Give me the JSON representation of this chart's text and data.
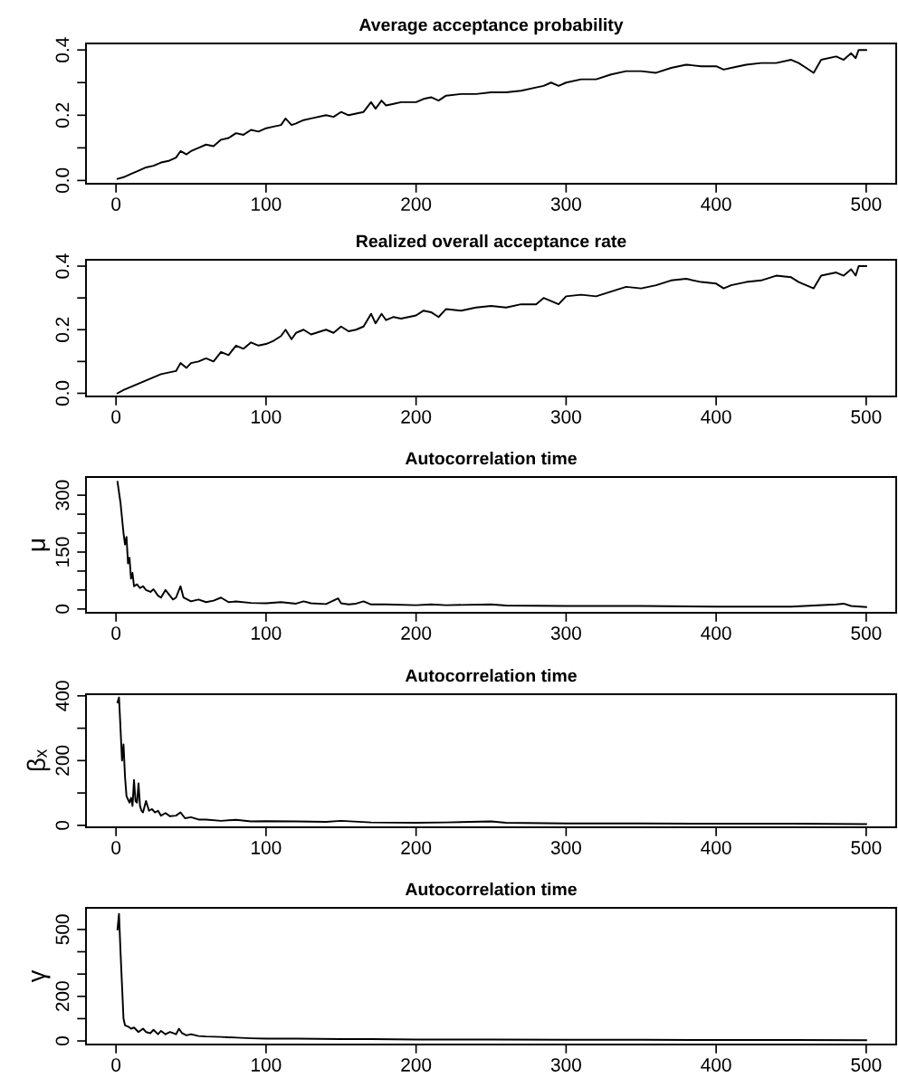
{
  "chart_data": [
    {
      "type": "line",
      "title": "Average acceptance probability",
      "xlim": [
        -20,
        520
      ],
      "xticks": [
        0,
        100,
        200,
        300,
        400,
        500
      ],
      "ylim": [
        -0.01,
        0.42
      ],
      "yticks": [
        {
          "value": 0,
          "label": "0.0"
        },
        {
          "value": 0.1,
          "label": null
        },
        0.2,
        {
          "value": 0.3,
          "label": null
        },
        0.4
      ],
      "grid": false,
      "legend": false,
      "series": [
        {
          "color": "#000000",
          "x": [
            1,
            5,
            10,
            15,
            20,
            25,
            30,
            35,
            40,
            43,
            47,
            50,
            55,
            60,
            65,
            70,
            75,
            80,
            85,
            90,
            95,
            100,
            105,
            110,
            113,
            117,
            120,
            125,
            130,
            140,
            145,
            150,
            155,
            160,
            165,
            170,
            173,
            177,
            180,
            185,
            190,
            200,
            205,
            210,
            215,
            220,
            230,
            240,
            250,
            260,
            270,
            280,
            285,
            290,
            295,
            300,
            310,
            320,
            330,
            340,
            350,
            360,
            370,
            380,
            390,
            400,
            405,
            410,
            420,
            430,
            440,
            450,
            455,
            460,
            465,
            470,
            480,
            485,
            490,
            493,
            495,
            500
          ],
          "values": [
            0.005,
            0.01,
            0.02,
            0.03,
            0.04,
            0.045,
            0.055,
            0.06,
            0.07,
            0.09,
            0.08,
            0.09,
            0.1,
            0.11,
            0.105,
            0.125,
            0.13,
            0.145,
            0.14,
            0.155,
            0.15,
            0.16,
            0.165,
            0.17,
            0.19,
            0.17,
            0.175,
            0.185,
            0.19,
            0.2,
            0.195,
            0.21,
            0.2,
            0.205,
            0.21,
            0.24,
            0.22,
            0.245,
            0.23,
            0.235,
            0.24,
            0.24,
            0.25,
            0.255,
            0.245,
            0.26,
            0.265,
            0.265,
            0.27,
            0.27,
            0.275,
            0.285,
            0.29,
            0.3,
            0.29,
            0.3,
            0.31,
            0.31,
            0.325,
            0.335,
            0.335,
            0.33,
            0.345,
            0.355,
            0.35,
            0.35,
            0.34,
            0.345,
            0.355,
            0.36,
            0.36,
            0.37,
            0.36,
            0.345,
            0.33,
            0.37,
            0.38,
            0.37,
            0.39,
            0.375,
            0.4,
            0.4
          ]
        }
      ]
    },
    {
      "type": "line",
      "title": "Realized overall acceptance rate",
      "xlim": [
        -20,
        520
      ],
      "xticks": [
        0,
        100,
        200,
        300,
        400,
        500
      ],
      "ylim": [
        -0.01,
        0.42
      ],
      "yticks": [
        {
          "value": 0,
          "label": "0.0"
        },
        {
          "value": 0.1,
          "label": null
        },
        0.2,
        {
          "value": 0.3,
          "label": null
        },
        0.4
      ],
      "grid": false,
      "legend": false,
      "series": [
        {
          "color": "#000000",
          "x": [
            1,
            5,
            10,
            15,
            20,
            25,
            30,
            35,
            40,
            43,
            47,
            50,
            55,
            60,
            65,
            70,
            75,
            80,
            85,
            90,
            95,
            100,
            105,
            110,
            113,
            117,
            120,
            125,
            130,
            140,
            145,
            150,
            155,
            160,
            165,
            170,
            173,
            177,
            180,
            185,
            190,
            200,
            205,
            210,
            215,
            220,
            230,
            240,
            250,
            260,
            270,
            280,
            285,
            290,
            295,
            300,
            310,
            320,
            330,
            340,
            350,
            360,
            370,
            380,
            390,
            400,
            405,
            410,
            420,
            430,
            440,
            450,
            455,
            460,
            465,
            470,
            480,
            485,
            490,
            493,
            495,
            500
          ],
          "values": [
            0.0,
            0.01,
            0.02,
            0.03,
            0.04,
            0.05,
            0.06,
            0.065,
            0.07,
            0.095,
            0.08,
            0.095,
            0.1,
            0.11,
            0.1,
            0.13,
            0.12,
            0.15,
            0.14,
            0.16,
            0.15,
            0.155,
            0.165,
            0.18,
            0.2,
            0.17,
            0.19,
            0.2,
            0.185,
            0.2,
            0.19,
            0.21,
            0.195,
            0.2,
            0.21,
            0.25,
            0.22,
            0.25,
            0.23,
            0.24,
            0.235,
            0.245,
            0.26,
            0.255,
            0.24,
            0.265,
            0.26,
            0.27,
            0.275,
            0.27,
            0.28,
            0.28,
            0.3,
            0.29,
            0.28,
            0.305,
            0.31,
            0.305,
            0.32,
            0.335,
            0.33,
            0.34,
            0.355,
            0.36,
            0.35,
            0.345,
            0.33,
            0.34,
            0.35,
            0.355,
            0.37,
            0.365,
            0.35,
            0.34,
            0.33,
            0.37,
            0.38,
            0.37,
            0.39,
            0.37,
            0.4,
            0.4
          ]
        }
      ]
    },
    {
      "type": "line",
      "title": "Autocorrelation time",
      "ylabel": "μ",
      "xlim": [
        -20,
        520
      ],
      "xticks": [
        0,
        100,
        200,
        300,
        400,
        500
      ],
      "ylim": [
        -10,
        348
      ],
      "yticks": [
        0,
        {
          "value": 50,
          "label": null
        },
        {
          "value": 100,
          "label": null
        },
        150,
        {
          "value": 200,
          "label": null
        },
        {
          "value": 250,
          "label": null
        },
        300
      ],
      "grid": false,
      "legend": false,
      "series": [
        {
          "color": "#000000",
          "x": [
            1,
            3,
            5,
            6,
            7,
            8,
            9,
            10,
            11,
            12,
            14,
            16,
            18,
            20,
            23,
            25,
            28,
            30,
            33,
            35,
            38,
            40,
            43,
            45,
            50,
            55,
            60,
            65,
            70,
            75,
            80,
            90,
            100,
            110,
            120,
            125,
            130,
            140,
            148,
            150,
            155,
            160,
            165,
            170,
            180,
            200,
            210,
            220,
            250,
            260,
            300,
            350,
            400,
            450,
            480,
            485,
            490,
            500
          ],
          "values": [
            335,
            280,
            200,
            170,
            190,
            120,
            135,
            80,
            95,
            60,
            65,
            55,
            60,
            50,
            45,
            52,
            35,
            30,
            50,
            40,
            25,
            30,
            60,
            30,
            20,
            25,
            18,
            22,
            30,
            18,
            20,
            16,
            15,
            18,
            14,
            20,
            15,
            13,
            28,
            15,
            12,
            14,
            20,
            12,
            12,
            10,
            12,
            10,
            12,
            9,
            8,
            8,
            6,
            6,
            12,
            14,
            8,
            5
          ]
        }
      ]
    },
    {
      "type": "line",
      "title": "Autocorrelation time",
      "ylabel": "βₓ",
      "xlim": [
        -20,
        520
      ],
      "xticks": [
        0,
        100,
        200,
        300,
        400,
        500
      ],
      "ylim": [
        -6,
        405
      ],
      "yticks": [
        0,
        {
          "value": 100,
          "label": null
        },
        200,
        {
          "value": 300,
          "label": null
        },
        400
      ],
      "grid": false,
      "legend": false,
      "series": [
        {
          "color": "#000000",
          "x": [
            1,
            2,
            3,
            4,
            5,
            6,
            7,
            8,
            9,
            10,
            11,
            12,
            13,
            14,
            15,
            16,
            17,
            18,
            20,
            22,
            24,
            26,
            28,
            30,
            33,
            36,
            40,
            43,
            46,
            50,
            55,
            60,
            70,
            80,
            90,
            100,
            120,
            140,
            150,
            170,
            200,
            220,
            250,
            260,
            300,
            350,
            400,
            450,
            500
          ],
          "values": [
            380,
            395,
            300,
            200,
            250,
            150,
            90,
            80,
            70,
            85,
            60,
            140,
            75,
            70,
            130,
            60,
            45,
            40,
            75,
            45,
            50,
            40,
            45,
            30,
            38,
            28,
            30,
            40,
            22,
            25,
            18,
            18,
            14,
            17,
            12,
            13,
            12,
            11,
            14,
            9,
            8,
            9,
            12,
            8,
            6,
            6,
            5,
            5,
            4
          ]
        }
      ]
    },
    {
      "type": "line",
      "title": "Autocorrelation time",
      "ylabel": "γ",
      "xlim": [
        -20,
        520
      ],
      "xticks": [
        0,
        100,
        200,
        300,
        400,
        500
      ],
      "ylim": [
        -16,
        597
      ],
      "yticks": [
        0,
        {
          "value": 100,
          "label": null
        },
        200,
        {
          "value": 300,
          "label": null
        },
        {
          "value": 400,
          "label": null
        },
        500
      ],
      "grid": false,
      "legend": false,
      "series": [
        {
          "color": "#000000",
          "x": [
            1,
            2,
            3,
            4,
            5,
            6,
            8,
            10,
            12,
            15,
            18,
            20,
            23,
            25,
            28,
            30,
            33,
            36,
            40,
            42,
            44,
            47,
            50,
            55,
            60,
            70,
            80,
            90,
            100,
            120,
            150,
            170,
            200,
            250,
            300,
            350,
            400,
            450,
            500
          ],
          "values": [
            500,
            570,
            400,
            250,
            100,
            70,
            65,
            55,
            60,
            40,
            55,
            40,
            35,
            50,
            30,
            45,
            30,
            40,
            30,
            55,
            35,
            25,
            30,
            22,
            20,
            18,
            15,
            12,
            10,
            10,
            8,
            8,
            6,
            6,
            5,
            5,
            4,
            4,
            3
          ]
        }
      ]
    }
  ]
}
